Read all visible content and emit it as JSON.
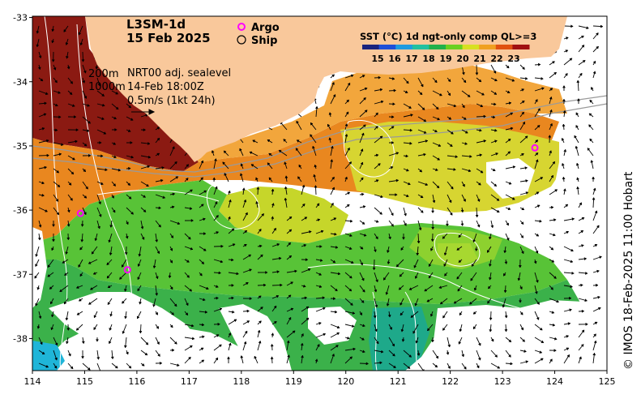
{
  "title_line1": "L3SM-1d",
  "title_line2": "15 Feb 2025",
  "legend": {
    "argo": "Argo",
    "ship": "Ship",
    "argo_color": "#ff00ff"
  },
  "colorbar": {
    "title": "SST (°C) 1d ngt-only comp QL>=3",
    "ticks": [
      "15",
      "16",
      "17",
      "18",
      "19",
      "20",
      "21",
      "22",
      "23"
    ],
    "colors": [
      "#1a237e",
      "#1e4fd8",
      "#1e9be0",
      "#22c0a0",
      "#22b04a",
      "#6ad020",
      "#d8e020",
      "#f0a020",
      "#e05010",
      "#a01010"
    ]
  },
  "annotations": {
    "contour_200": "200m",
    "contour_1000": "1000m",
    "source": "NRT00 adj. sealevel",
    "valid_time": "14-Feb 18:00Z",
    "scale_vector": "0.5m/s (1kt 24h)"
  },
  "credit": "© IMOS 18-Feb-2025 11:00 Hobart",
  "axes": {
    "x_ticks": [
      "114",
      "115",
      "116",
      "117",
      "118",
      "119",
      "120",
      "121",
      "122",
      "123",
      "124",
      "125"
    ],
    "y_ticks": [
      "-33",
      "-34",
      "-35",
      "-36",
      "-37",
      "-38"
    ]
  },
  "colors": {
    "land": "#f9c89b",
    "warm_water": "#8b1a12",
    "no_data": "#ffffff"
  },
  "argo_floats": [
    {
      "lon": 114.92,
      "lat": -36.05
    },
    {
      "lon": 115.82,
      "lat": -36.93
    },
    {
      "lon": 123.62,
      "lat": -35.03
    }
  ]
}
